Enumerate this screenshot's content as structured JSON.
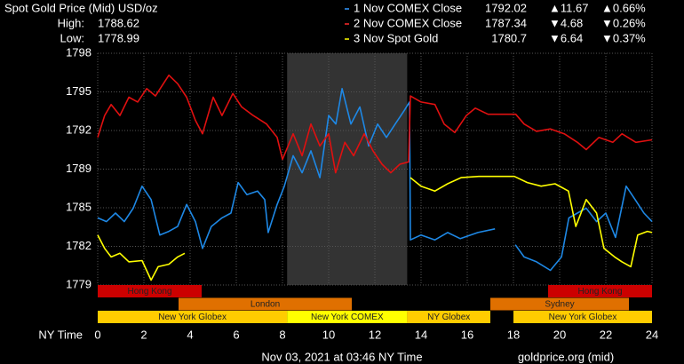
{
  "chart_data": {
    "type": "line",
    "title": "Spot Gold Price (Mid) USD/oz",
    "high": {
      "label": "High:",
      "value": 1788.62
    },
    "low": {
      "label": "Low:",
      "value": 1778.99
    },
    "x_label": "NY Time",
    "footer": "Nov 03, 2021 at 03:46 NY Time",
    "source": "goldprice.org (mid)",
    "xlim": [
      0,
      24
    ],
    "xticks": [
      0,
      2,
      4,
      6,
      8,
      10,
      12,
      14,
      16,
      18,
      20,
      22,
      24
    ],
    "ylim": [
      1779,
      1798
    ],
    "yticks": [
      {
        "value": 1779,
        "label": "1779"
      },
      {
        "value": 1782.17,
        "label": "1782"
      },
      {
        "value": 1785.33,
        "label": "1785"
      },
      {
        "value": 1788.5,
        "label": "1789"
      },
      {
        "value": 1791.67,
        "label": "1792"
      },
      {
        "value": 1794.83,
        "label": "1795"
      },
      {
        "value": 1798,
        "label": "1798"
      }
    ],
    "grid": true,
    "up_color": "#00ff00",
    "down_color": "#ff2020",
    "series": [
      {
        "name": "1 Nov COMEX Close",
        "color": "#1e88e5",
        "legend_color": "#3399ff",
        "close": 1792.02,
        "change": {
          "value": 11.67,
          "label": "▲11.67"
        },
        "change_pct": {
          "value": 0.66,
          "label": "▲0.66%"
        },
        "x": [
          0,
          0.38,
          0.77,
          1.15,
          1.54,
          1.92,
          2.31,
          2.69,
          3.08,
          3.46,
          3.85,
          4.23,
          4.54,
          4.92,
          5.38,
          5.77,
          6.08,
          6.46,
          6.92,
          7.23,
          7.38,
          7.77,
          8.08,
          8.46,
          8.85,
          9.23,
          9.62,
          10.0,
          10.31,
          10.58,
          10.96,
          11.35,
          11.73,
          12.12,
          12.5,
          12.88,
          13.27,
          13.5,
          13.54,
          14.0,
          14.6,
          15.15,
          15.7,
          16.46,
          17.2,
          17.6,
          18.08,
          18.46,
          19.0,
          19.6,
          20.08,
          20.4,
          20.77,
          21.15,
          21.6,
          22.0,
          22.42,
          22.88,
          23.27,
          23.65,
          24
        ],
        "values": [
          1784.5,
          1784.2,
          1784.9,
          1784.2,
          1785.3,
          1787.1,
          1786.0,
          1783.1,
          1783.4,
          1783.8,
          1785.6,
          1784.2,
          1782.0,
          1783.8,
          1784.5,
          1784.9,
          1787.4,
          1786.4,
          1786.7,
          1786.0,
          1783.3,
          1785.6,
          1787.1,
          1789.6,
          1788.2,
          1790.0,
          1787.8,
          1792.9,
          1792.2,
          1795.1,
          1792.2,
          1793.6,
          1790.4,
          1792.2,
          1791.1,
          1792.2,
          1793.3,
          1794.0,
          1782.7,
          1783.1,
          1782.7,
          1783.3,
          1782.8,
          1783.3,
          1783.6,
          null,
          1782.3,
          1781.3,
          1780.9,
          1780.2,
          1781.3,
          1784.5,
          1784.9,
          1785.3,
          1784.2,
          1784.9,
          1782.9,
          1787.1,
          1786.0,
          1784.9,
          1784.2
        ]
      },
      {
        "name": "2 Nov COMEX Close",
        "color": "#e01010",
        "legend_color": "#ff2a2a",
        "close": 1787.34,
        "change": {
          "value": -4.68,
          "label": "▼4.68"
        },
        "change_pct": {
          "value": -0.26,
          "label": "▼0.26%"
        },
        "x": [
          0,
          0.3,
          0.58,
          0.96,
          1.35,
          1.73,
          2.12,
          2.5,
          3.08,
          3.46,
          3.85,
          4.23,
          4.54,
          5.0,
          5.38,
          5.85,
          6.23,
          6.73,
          7.31,
          7.77,
          8.0,
          8.46,
          8.85,
          9.23,
          9.62,
          10.0,
          10.3,
          10.7,
          11.08,
          11.54,
          11.92,
          12.31,
          12.69,
          13.08,
          13.46,
          13.54,
          14.0,
          14.6,
          15.0,
          15.46,
          15.96,
          16.35,
          16.9,
          18.1,
          18.46,
          19.0,
          19.6,
          20.2,
          20.77,
          21.15,
          21.7,
          22.3,
          22.7,
          23.3,
          24
        ],
        "values": [
          1791.1,
          1792.9,
          1793.8,
          1792.9,
          1794.4,
          1794.0,
          1795.1,
          1794.5,
          1796.2,
          1795.5,
          1794.4,
          1792.5,
          1791.4,
          1794.4,
          1792.9,
          1794.7,
          1793.6,
          1792.9,
          1792.2,
          1791.1,
          1789.3,
          1791.4,
          1789.6,
          1792.2,
          1790.4,
          1791.4,
          1788.2,
          1790.7,
          1789.6,
          1791.4,
          1790.0,
          1788.9,
          1788.2,
          1788.9,
          1789.1,
          1794.5,
          1794.0,
          1793.8,
          1792.2,
          1791.5,
          1792.9,
          1793.5,
          1793.0,
          1793.0,
          1792.2,
          1791.6,
          1791.8,
          1791.4,
          1790.7,
          1790.1,
          1791.1,
          1790.7,
          1791.4,
          1790.7,
          1790.9
        ]
      },
      {
        "name": "3 Nov Spot Gold",
        "color": "#ffff00",
        "legend_color": "#ffff00",
        "close": 1780.7,
        "change": {
          "value": -6.64,
          "label": "▼6.64"
        },
        "change_pct": {
          "value": -0.37,
          "label": "▼0.37%"
        },
        "x": [
          0,
          0.3,
          0.58,
          0.96,
          1.35,
          1.92,
          2.31,
          2.62,
          3.08,
          3.46,
          3.77,
          8.0,
          13.54,
          14.0,
          14.6,
          15.15,
          15.73,
          16.5,
          17.27,
          18.04,
          18.6,
          19.2,
          19.8,
          20.38,
          20.7,
          21.15,
          21.6,
          21.92,
          22.38,
          22.7,
          23.08,
          23.38,
          23.8,
          24
        ],
        "values": [
          1783.1,
          1782.0,
          1781.3,
          1781.6,
          1780.9,
          1781.0,
          1779.4,
          1780.5,
          1780.7,
          1781.3,
          1781.6,
          null,
          1787.8,
          1787.1,
          1786.7,
          1787.3,
          1787.8,
          1787.9,
          1787.9,
          1787.9,
          1787.4,
          1787.1,
          1787.3,
          1786.7,
          1783.8,
          1786.0,
          1784.9,
          1782.0,
          1781.3,
          1780.9,
          1780.5,
          1783.1,
          1783.4,
          1783.3
        ]
      }
    ],
    "sessions": [
      {
        "name": "Hong Kong",
        "start": 0,
        "end": 4.5,
        "row": 0,
        "color": "#cc0000"
      },
      {
        "name": "Hong Kong",
        "start": 19.5,
        "end": 24,
        "row": 0,
        "color": "#cc0000"
      },
      {
        "name": "London",
        "start": 3.5,
        "end": 11,
        "row": 1,
        "color": "#e07000"
      },
      {
        "name": "Sydney",
        "start": 17,
        "end": 23,
        "row": 1,
        "color": "#e07000"
      },
      {
        "name": "New York Globex",
        "start": 0,
        "end": 8.2,
        "row": 2,
        "color": "#ffcc00"
      },
      {
        "name": "New York COMEX",
        "start": 8.2,
        "end": 13.4,
        "row": 2,
        "color": "#ffff00",
        "highlight": true
      },
      {
        "name": "NY Globex",
        "start": 13.4,
        "end": 17,
        "row": 2,
        "color": "#ffcc00"
      },
      {
        "name": "New York Globex",
        "start": 18,
        "end": 24,
        "row": 2,
        "color": "#ffcc00"
      }
    ]
  }
}
